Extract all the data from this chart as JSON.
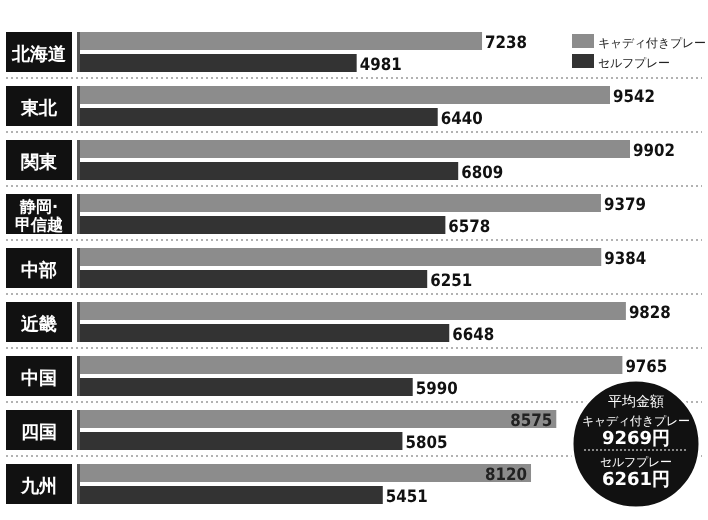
{
  "chart_data": {
    "type": "bar",
    "orientation": "horizontal",
    "categories": [
      "北海道",
      "東北",
      "関東",
      "静岡·甲信越",
      "中部",
      "近畿",
      "中国",
      "四国",
      "九州"
    ],
    "series": [
      {
        "name": "キャディ付きプレー",
        "color": "#8c8c8c",
        "values": [
          7238,
          9542,
          9902,
          9379,
          9384,
          9828,
          9765,
          8575,
          8120
        ]
      },
      {
        "name": "セルフプレー",
        "color": "#333333",
        "values": [
          4981,
          6440,
          6809,
          6578,
          6251,
          6648,
          5990,
          5805,
          5451
        ]
      }
    ],
    "data_labels": true,
    "legend": "top right",
    "annotations": [
      "平均金額",
      "キャディ付きプレー 9269円",
      "セルフプレー 6261円"
    ]
  }
}
